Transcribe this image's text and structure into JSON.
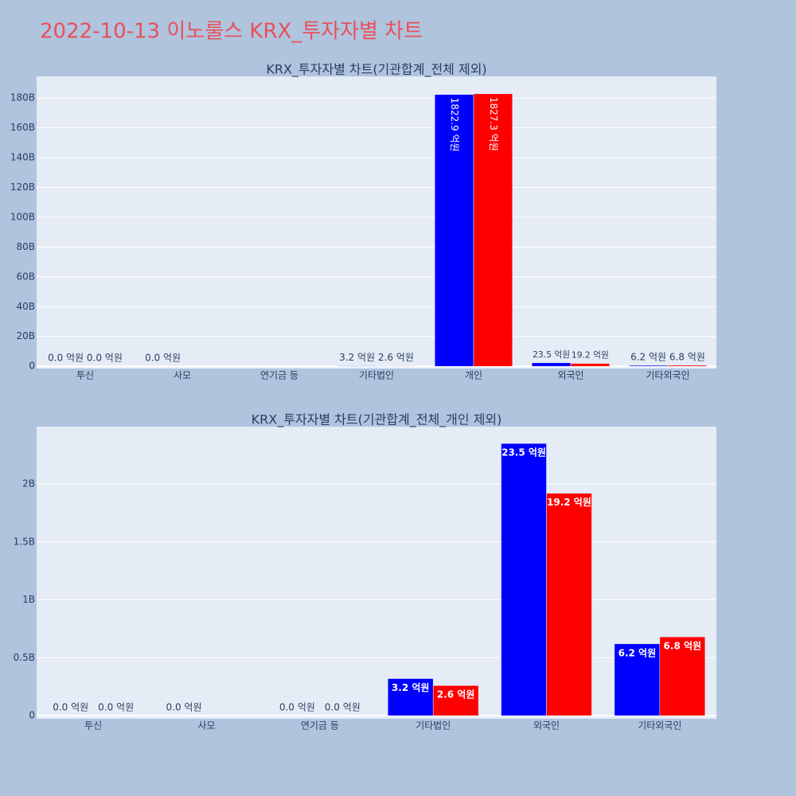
{
  "title": "2022-10-13 이노룰스 KRX_투자자별 차트",
  "chart_data": [
    {
      "type": "bar",
      "title": "KRX_투자자별 차트(기관합계_전체 제외)",
      "categories": [
        "투신",
        "사모",
        "연기금 등",
        "기타법인",
        "개인",
        "외국인",
        "기타외국인"
      ],
      "series": [
        {
          "color": "#0000ff",
          "values": [
            0,
            0,
            0,
            0.32,
            182.29,
            2.35,
            0.62
          ],
          "value_labels": [
            "0.0 억원",
            "0.0 억원",
            null,
            "3.2 억원",
            "1822.9 억원",
            "23.5 억원",
            "6.2 억원"
          ]
        },
        {
          "color": "#ff0000",
          "values": [
            0,
            null,
            0,
            0.26,
            182.73,
            1.92,
            0.68
          ],
          "value_labels": [
            "0.0 억원",
            null,
            null,
            "2.6 억원",
            "1827.3 억원",
            "19.2 억원",
            "6.8 억원"
          ]
        }
      ],
      "ylim": [
        -1.5,
        194.4
      ],
      "yticks": [
        0,
        {
          "value": 20,
          "label": "20B"
        },
        {
          "value": 40,
          "label": "40B"
        },
        {
          "value": 60,
          "label": "60B"
        },
        {
          "value": 80,
          "label": "80B"
        },
        {
          "value": 100,
          "label": "100B"
        },
        {
          "value": 120,
          "label": "120B"
        },
        {
          "value": 140,
          "label": "140B"
        },
        {
          "value": 160,
          "label": "160B"
        },
        {
          "value": 180,
          "label": "180B"
        }
      ],
      "grid": true
    },
    {
      "type": "bar",
      "title": "KRX_투자자별 차트(기관합계_전체_개인 제외)",
      "categories": [
        "투신",
        "사모",
        "연기금 등",
        "기타법인",
        "외국인",
        "기타외국인"
      ],
      "series": [
        {
          "color": "#0000ff",
          "values": [
            0,
            0,
            0,
            0.32,
            2.35,
            0.62
          ],
          "value_labels": [
            "0.0 억원",
            "0.0 억원",
            "0.0 억원",
            "3.2 억원",
            "23.5 억원",
            "6.2 억원"
          ]
        },
        {
          "color": "#ff0000",
          "values": [
            0,
            null,
            0,
            0.26,
            1.92,
            0.68
          ],
          "value_labels": [
            "0.0 억원",
            null,
            "0.0 억원",
            "2.6 억원",
            "19.2 억원",
            "6.8 억원"
          ]
        }
      ],
      "ylim": [
        -0.027,
        2.495
      ],
      "yticks": [
        0,
        {
          "value": 0.5,
          "label": "0.5B"
        },
        {
          "value": 1,
          "label": "1B"
        },
        {
          "value": 1.5,
          "label": "1.5B"
        },
        {
          "value": 2,
          "label": "2B"
        }
      ],
      "grid": true
    }
  ]
}
